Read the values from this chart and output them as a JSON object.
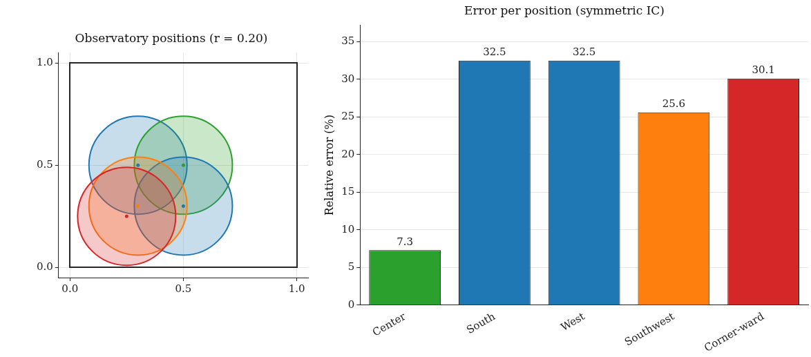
{
  "chart_data": [
    {
      "type": "bubble",
      "title": "Observatory positions (r = 0.20)",
      "xlim": [
        -0.05,
        1.05
      ],
      "ylim": [
        -0.05,
        1.05
      ],
      "xticks": [
        {
          "value": 0,
          "label": "0.0"
        },
        {
          "value": 0.5,
          "label": "0.5"
        },
        {
          "value": 1,
          "label": "1.0"
        }
      ],
      "yticks": [
        {
          "value": 0,
          "label": "0.0"
        },
        {
          "value": 0.5,
          "label": "0.5"
        },
        {
          "value": 1,
          "label": "1.0"
        }
      ],
      "grid": true,
      "legend": false,
      "series": [
        {
          "type": "bubble",
          "x": [
            0.3,
            0.5,
            0.5,
            0.3,
            0.25
          ],
          "values": [
            0.5,
            0.5,
            0.3,
            0.3,
            0.25
          ],
          "sizes": [
            1,
            1,
            1,
            1,
            1
          ],
          "colors": [
            "#1f77b4",
            "#2ca02c",
            "#1f77b4",
            "#ff7f0e",
            "#d62728"
          ]
        }
      ]
    },
    {
      "type": "bar",
      "title": "Error per position (symmetric IC)",
      "ylabel": "Relative error (%)",
      "categories": [
        "Center",
        "South",
        "West",
        "Southwest",
        "Corner-ward"
      ],
      "values": [
        7.3,
        32.5,
        32.5,
        25.6,
        30.1
      ],
      "colors": [
        "#2ca02c",
        "#1f77b4",
        "#1f77b4",
        "#ff7f0e",
        "#d62728"
      ],
      "ylim": [
        0,
        37.2
      ],
      "yticks": [
        0,
        5,
        10,
        15,
        20,
        25,
        30,
        35
      ],
      "grid": "y",
      "legend": false,
      "data_labels": true
    }
  ]
}
